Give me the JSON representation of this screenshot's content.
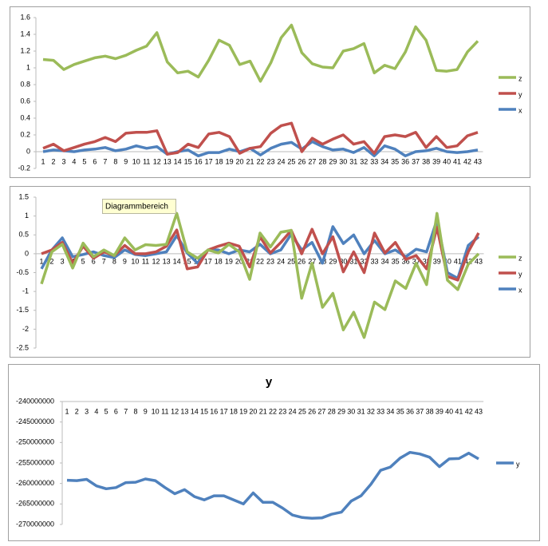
{
  "chart_data": [
    {
      "type": "line",
      "categories": [
        1,
        2,
        3,
        4,
        5,
        6,
        7,
        8,
        9,
        10,
        11,
        12,
        13,
        14,
        15,
        16,
        17,
        18,
        19,
        20,
        21,
        22,
        23,
        24,
        25,
        26,
        27,
        28,
        29,
        30,
        31,
        32,
        33,
        34,
        35,
        36,
        37,
        38,
        39,
        40,
        41,
        42,
        43
      ],
      "ylim": [
        -0.2,
        1.6
      ],
      "yticks": [
        -0.2,
        0,
        0.2,
        0.4,
        0.6,
        0.8,
        1,
        1.2,
        1.4,
        1.6
      ],
      "grid": false,
      "legend": "right",
      "series": [
        {
          "name": "x",
          "color": "#4f81bd",
          "values": [
            0.0,
            0.02,
            0.01,
            0.0,
            0.02,
            0.03,
            0.05,
            0.01,
            0.03,
            0.07,
            0.04,
            0.06,
            -0.03,
            0.0,
            0.02,
            -0.05,
            -0.01,
            -0.01,
            0.03,
            0.0,
            0.04,
            -0.04,
            0.04,
            0.09,
            0.11,
            0.03,
            0.12,
            0.06,
            0.02,
            0.03,
            -0.01,
            0.05,
            -0.05,
            0.07,
            0.03,
            -0.05,
            0.0,
            0.01,
            0.04,
            0.0,
            -0.01,
            0.0,
            0.02
          ]
        },
        {
          "name": "y",
          "color": "#c0504d",
          "values": [
            0.04,
            0.09,
            0.01,
            0.05,
            0.09,
            0.12,
            0.17,
            0.12,
            0.22,
            0.23,
            0.23,
            0.25,
            -0.03,
            -0.01,
            0.09,
            0.05,
            0.21,
            0.23,
            0.18,
            -0.02,
            0.04,
            0.06,
            0.22,
            0.31,
            0.34,
            0.0,
            0.16,
            0.09,
            0.15,
            0.2,
            0.09,
            0.12,
            -0.02,
            0.18,
            0.2,
            0.18,
            0.23,
            0.05,
            0.18,
            0.05,
            0.07,
            0.19,
            0.23
          ]
        },
        {
          "name": "z",
          "color": "#9bbb59",
          "values": [
            1.1,
            1.09,
            0.98,
            1.04,
            1.08,
            1.12,
            1.14,
            1.11,
            1.15,
            1.21,
            1.26,
            1.42,
            1.07,
            0.94,
            0.96,
            0.89,
            1.09,
            1.33,
            1.27,
            1.04,
            1.08,
            0.84,
            1.06,
            1.36,
            1.51,
            1.18,
            1.05,
            1.01,
            1.0,
            1.2,
            1.23,
            1.29,
            0.94,
            1.03,
            0.99,
            1.19,
            1.49,
            1.33,
            0.97,
            0.96,
            0.98,
            1.19,
            1.32
          ]
        }
      ]
    },
    {
      "type": "line",
      "tooltip": "Diagrammbereich",
      "categories": [
        1,
        2,
        3,
        4,
        5,
        6,
        7,
        8,
        9,
        10,
        11,
        12,
        13,
        14,
        15,
        16,
        17,
        18,
        19,
        20,
        21,
        22,
        23,
        24,
        25,
        26,
        27,
        28,
        29,
        30,
        31,
        32,
        33,
        34,
        35,
        36,
        37,
        38,
        39,
        40,
        41,
        42,
        43
      ],
      "ylim": [
        -2.5,
        1.5
      ],
      "yticks": [
        -2.5,
        -2,
        -1.5,
        -1,
        -0.5,
        0,
        0.5,
        1,
        1.5
      ],
      "grid": false,
      "legend": "right",
      "series": [
        {
          "name": "x",
          "color": "#4f81bd",
          "values": [
            -0.4,
            0.1,
            0.42,
            -0.08,
            -0.02,
            0.05,
            -0.05,
            -0.1,
            0.1,
            -0.02,
            -0.05,
            0.0,
            0.05,
            0.48,
            0.02,
            -0.25,
            0.1,
            0.1,
            0.0,
            0.1,
            0.05,
            0.25,
            0.0,
            0.1,
            0.52,
            0.1,
            0.3,
            -0.25,
            0.72,
            0.27,
            0.5,
            0.0,
            0.35,
            0.0,
            0.1,
            -0.08,
            0.12,
            0.05,
            0.9,
            -0.5,
            -0.65,
            0.22,
            0.45
          ]
        },
        {
          "name": "y",
          "color": "#c0504d",
          "values": [
            0.0,
            0.1,
            0.3,
            -0.25,
            0.2,
            -0.12,
            0.05,
            -0.05,
            0.22,
            0.0,
            0.0,
            0.05,
            0.2,
            0.63,
            -0.4,
            -0.35,
            0.1,
            0.2,
            0.28,
            0.2,
            -0.35,
            0.45,
            0.02,
            0.3,
            0.62,
            0.0,
            0.65,
            0.0,
            0.45,
            -0.48,
            0.05,
            -0.5,
            0.55,
            0.02,
            0.3,
            -0.15,
            -0.05,
            -0.4,
            0.7,
            -0.6,
            -0.7,
            0.05,
            0.55
          ]
        },
        {
          "name": "z",
          "color": "#9bbb59",
          "values": [
            -0.8,
            0.05,
            0.25,
            -0.38,
            0.28,
            -0.08,
            0.1,
            -0.05,
            0.42,
            0.1,
            0.24,
            0.22,
            0.25,
            1.07,
            0.05,
            -0.12,
            0.1,
            0.02,
            0.25,
            0.05,
            -0.68,
            0.55,
            0.18,
            0.57,
            0.62,
            -1.18,
            -0.25,
            -1.42,
            -1.05,
            -2.02,
            -1.55,
            -2.22,
            -1.28,
            -1.48,
            -0.72,
            -0.92,
            -0.25,
            -0.82,
            1.07,
            -0.7,
            -0.95,
            -0.28,
            0.0
          ]
        }
      ]
    },
    {
      "type": "line",
      "title": "y",
      "categories": [
        1,
        2,
        3,
        4,
        5,
        6,
        7,
        8,
        9,
        10,
        11,
        12,
        13,
        14,
        15,
        16,
        17,
        18,
        19,
        20,
        21,
        22,
        23,
        24,
        25,
        26,
        27,
        28,
        29,
        30,
        31,
        32,
        33,
        34,
        35,
        36,
        37,
        38,
        39,
        40,
        41,
        42,
        43
      ],
      "ylim": [
        -270000000,
        -240000000
      ],
      "yticks": [
        -270000000,
        -265000000,
        -260000000,
        -255000000,
        -250000000,
        -245000000,
        -240000000
      ],
      "grid": false,
      "legend": "right",
      "series": [
        {
          "name": "y",
          "color": "#4f81bd",
          "values": [
            -259200000,
            -259300000,
            -259000000,
            -260600000,
            -261300000,
            -261000000,
            -259800000,
            -259700000,
            -258900000,
            -259300000,
            -261000000,
            -262500000,
            -261500000,
            -263200000,
            -264000000,
            -263000000,
            -263000000,
            -264000000,
            -265000000,
            -262300000,
            -264600000,
            -264600000,
            -266000000,
            -267700000,
            -268300000,
            -268500000,
            -268400000,
            -267500000,
            -267000000,
            -264300000,
            -263000000,
            -260200000,
            -256800000,
            -256000000,
            -253800000,
            -252400000,
            -252800000,
            -253600000,
            -255900000,
            -254000000,
            -253900000,
            -252600000,
            -254000000
          ]
        }
      ]
    }
  ]
}
